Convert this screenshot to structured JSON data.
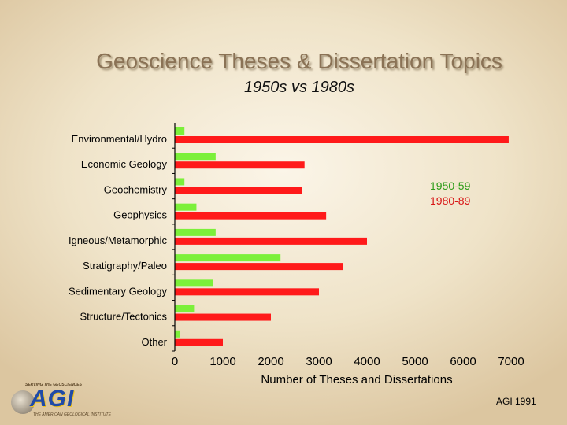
{
  "title": "Geoscience Theses & Dissertation Topics",
  "subtitle": "1950s vs 1980s",
  "credit": "AGI 1991",
  "logo": {
    "top_text": "SERVING THE GEOSCIENCES",
    "main_text": "AGI",
    "bottom_text": "THE AMERICAN GEOLOGICAL INSTITUTE"
  },
  "colors": {
    "series_1950": "#7cf03a",
    "series_1980": "#ff1a1a"
  },
  "chart_data": {
    "type": "bar",
    "orientation": "horizontal",
    "categories": [
      "Environmental/Hydro",
      "Economic Geology",
      "Geochemistry",
      "Geophysics",
      "Igneous/Metamorphic",
      "Stratigraphy/Paleo",
      "Sedimentary Geology",
      "Structure/Tectonics",
      "Other"
    ],
    "series": [
      {
        "name": "1950-59",
        "values": [
          200,
          850,
          200,
          450,
          850,
          2200,
          800,
          400,
          100
        ]
      },
      {
        "name": "1980-89",
        "values": [
          6950,
          2700,
          2650,
          3150,
          4000,
          3500,
          3000,
          2000,
          1000
        ]
      }
    ],
    "xlabel": "Number of Theses and Dissertations",
    "xlim": [
      0,
      7000
    ],
    "xticks": [
      "0",
      "1000",
      "2000",
      "3000",
      "4000",
      "5000",
      "6000",
      "7000"
    ],
    "grid": false,
    "legend_position": "right"
  }
}
